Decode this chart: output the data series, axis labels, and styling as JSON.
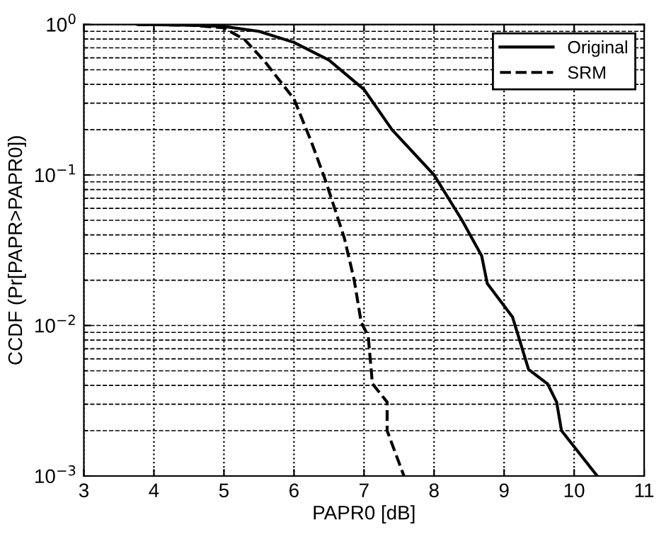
{
  "chart_data": {
    "type": "line",
    "xlabel": "PAPR0 [dB]",
    "ylabel": "CCDF (Pr[PAPR>PAPR0])",
    "log": "y",
    "grid": true,
    "legend": "top right",
    "marker": "none",
    "xlim": [
      3,
      11
    ],
    "xticks": [
      3,
      4,
      5,
      6,
      7,
      8,
      9,
      10,
      11
    ],
    "ylim": [
      0.001,
      1
    ],
    "yticks": [
      {
        "value": 0.001,
        "label": "10$^{−3}$"
      },
      {
        "value": 0.01,
        "label": "10$^{−2}$"
      },
      {
        "value": 0.1,
        "label": "10$^{−1}$"
      },
      {
        "value": 1,
        "label": "10$^{0}$"
      }
    ],
    "series": [
      {
        "name": "Original",
        "color": "#000000",
        "line_style": "solid",
        "x": [
          3.77,
          4.5,
          5.0,
          5.5,
          6.0,
          6.5,
          7.0,
          7.4,
          8.0,
          8.4,
          8.68,
          8.76,
          9.12,
          9.35,
          9.62,
          9.75,
          9.82,
          10.33
        ],
        "values": [
          1.0,
          0.99,
          0.97,
          0.9,
          0.76,
          0.58,
          0.37,
          0.2,
          0.1,
          0.05,
          0.029,
          0.019,
          0.0114,
          0.0051,
          0.0041,
          0.0031,
          0.002,
          0.001
        ]
      },
      {
        "name": "SRM",
        "color": "#000000",
        "line_style": "dashed",
        "x": [
          3.77,
          4.5,
          5.0,
          5.3,
          5.58,
          6.0,
          6.25,
          6.45,
          6.72,
          6.86,
          6.96,
          7.06,
          7.12,
          7.33,
          7.33,
          7.57
        ],
        "values": [
          1.0,
          0.99,
          0.95,
          0.79,
          0.57,
          0.32,
          0.165,
          0.092,
          0.038,
          0.02,
          0.0105,
          0.0085,
          0.0041,
          0.0031,
          0.002,
          0.001
        ]
      }
    ]
  }
}
